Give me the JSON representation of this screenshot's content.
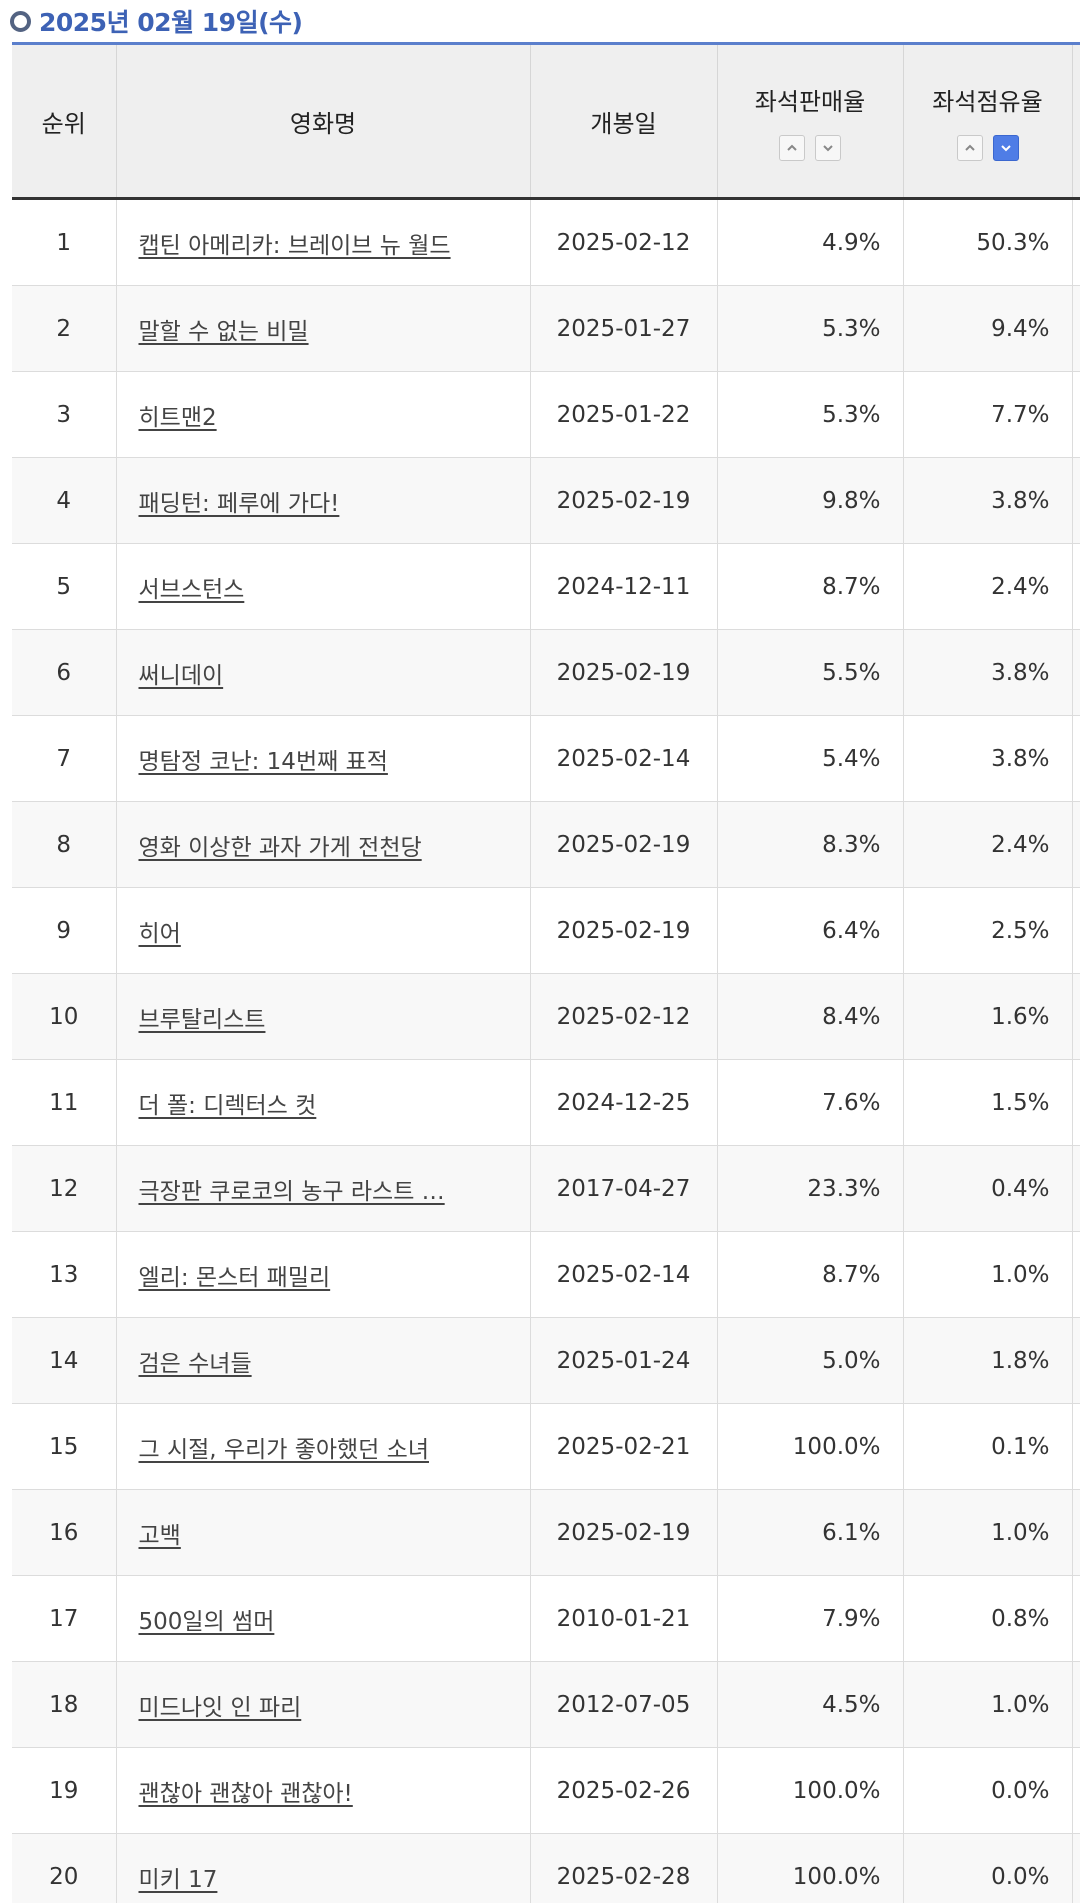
{
  "header": {
    "date_title": "2025년 02월 19일(수)"
  },
  "table": {
    "columns": {
      "rank": "순위",
      "title": "영화명",
      "release": "개봉일",
      "sales_rate": "좌석판매율",
      "share_rate": "좌석점유율"
    },
    "sort": {
      "sales_rate": "none",
      "share_rate": "descending"
    },
    "rows": [
      {
        "rank": "1",
        "title": "캡틴 아메리카: 브레이브 뉴 월드",
        "release": "2025-02-12",
        "sales": "4.9%",
        "share": "50.3%"
      },
      {
        "rank": "2",
        "title": "말할 수 없는 비밀",
        "release": "2025-01-27",
        "sales": "5.3%",
        "share": "9.4%"
      },
      {
        "rank": "3",
        "title": "히트맨2",
        "release": "2025-01-22",
        "sales": "5.3%",
        "share": "7.7%"
      },
      {
        "rank": "4",
        "title": "패딩턴: 페루에 가다!",
        "release": "2025-02-19",
        "sales": "9.8%",
        "share": "3.8%"
      },
      {
        "rank": "5",
        "title": "서브스턴스",
        "release": "2024-12-11",
        "sales": "8.7%",
        "share": "2.4%"
      },
      {
        "rank": "6",
        "title": "써니데이",
        "release": "2025-02-19",
        "sales": "5.5%",
        "share": "3.8%"
      },
      {
        "rank": "7",
        "title": "명탐정 코난: 14번째 표적",
        "release": "2025-02-14",
        "sales": "5.4%",
        "share": "3.8%"
      },
      {
        "rank": "8",
        "title": "영화 이상한 과자 가게 전천당",
        "release": "2025-02-19",
        "sales": "8.3%",
        "share": "2.4%"
      },
      {
        "rank": "9",
        "title": "히어",
        "release": "2025-02-19",
        "sales": "6.4%",
        "share": "2.5%"
      },
      {
        "rank": "10",
        "title": "브루탈리스트",
        "release": "2025-02-12",
        "sales": "8.4%",
        "share": "1.6%"
      },
      {
        "rank": "11",
        "title": "더 폴: 디렉터스 컷",
        "release": "2024-12-25",
        "sales": "7.6%",
        "share": "1.5%"
      },
      {
        "rank": "12",
        "title": "극장판 쿠로코의 농구 라스트 …",
        "release": "2017-04-27",
        "sales": "23.3%",
        "share": "0.4%"
      },
      {
        "rank": "13",
        "title": "엘리: 몬스터 패밀리",
        "release": "2025-02-14",
        "sales": "8.7%",
        "share": "1.0%"
      },
      {
        "rank": "14",
        "title": "검은 수녀들",
        "release": "2025-01-24",
        "sales": "5.0%",
        "share": "1.8%"
      },
      {
        "rank": "15",
        "title": "그 시절, 우리가 좋아했던 소녀",
        "release": "2025-02-21",
        "sales": "100.0%",
        "share": "0.1%"
      },
      {
        "rank": "16",
        "title": "고백",
        "release": "2025-02-19",
        "sales": "6.1%",
        "share": "1.0%"
      },
      {
        "rank": "17",
        "title": "500일의 썸머",
        "release": "2010-01-21",
        "sales": "7.9%",
        "share": "0.8%"
      },
      {
        "rank": "18",
        "title": "미드나잇 인 파리",
        "release": "2012-07-05",
        "sales": "4.5%",
        "share": "1.0%"
      },
      {
        "rank": "19",
        "title": "괜찮아 괜찮아 괜찮아!",
        "release": "2025-02-26",
        "sales": "100.0%",
        "share": "0.0%"
      },
      {
        "rank": "20",
        "title": "미키 17",
        "release": "2025-02-28",
        "sales": "100.0%",
        "share": "0.0%"
      }
    ]
  },
  "colors": {
    "accent": "#3d62b5",
    "header_bg": "#efefef",
    "active_sort": "#4f7de6"
  }
}
